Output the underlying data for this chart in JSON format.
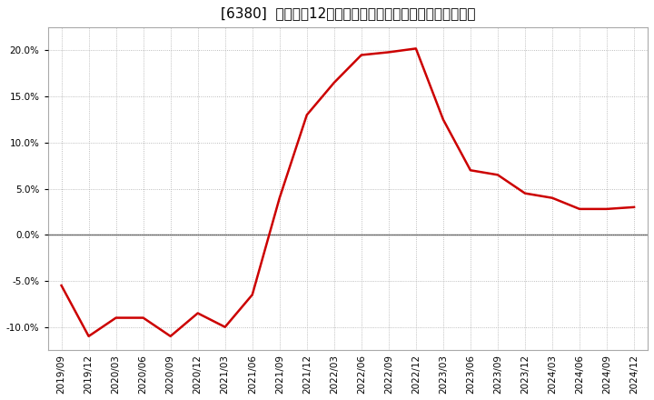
{
  "title": "[6380]  売上高の12か月移動合計の対前年同期増減率の推移",
  "x_labels": [
    "2019/09",
    "2019/12",
    "2020/03",
    "2020/06",
    "2020/09",
    "2020/12",
    "2021/03",
    "2021/06",
    "2021/09",
    "2021/12",
    "2022/03",
    "2022/06",
    "2022/09",
    "2022/12",
    "2023/03",
    "2023/06",
    "2023/09",
    "2023/12",
    "2024/03",
    "2024/06",
    "2024/09",
    "2024/12"
  ],
  "values": [
    -5.5,
    -11.0,
    -9.0,
    -9.0,
    -11.0,
    -8.5,
    -10.0,
    -6.5,
    4.0,
    13.0,
    16.5,
    19.5,
    19.8,
    20.2,
    12.5,
    7.0,
    6.5,
    4.5,
    4.0,
    2.8,
    2.8,
    3.0
  ],
  "ylim": [
    -12.5,
    22.5
  ],
  "yticks": [
    -10.0,
    -5.0,
    0.0,
    5.0,
    10.0,
    15.0,
    20.0
  ],
  "line_color": "#cc0000",
  "background_color": "#ffffff",
  "grid_color": "#aaaaaa",
  "zero_line_color": "#555555",
  "title_fontsize": 11,
  "tick_fontsize": 7.5
}
